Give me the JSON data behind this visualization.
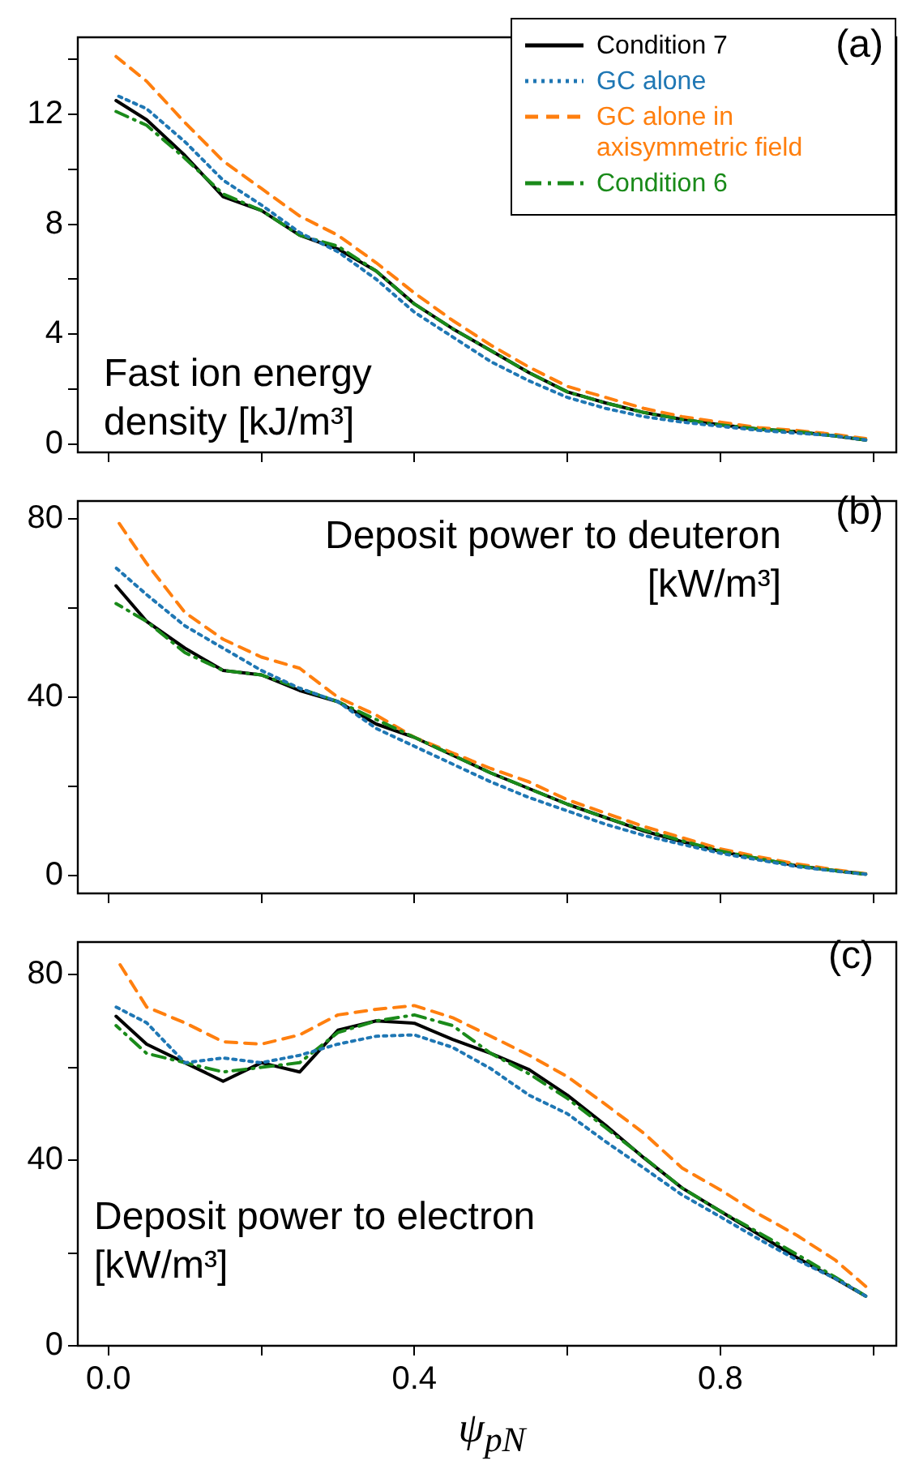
{
  "chart_data": [
    {
      "type": "line",
      "x": [
        0.01,
        0.05,
        0.1,
        0.15,
        0.2,
        0.25,
        0.3,
        0.35,
        0.4,
        0.45,
        0.5,
        0.55,
        0.6,
        0.65,
        0.7,
        0.75,
        0.8,
        0.85,
        0.9,
        0.95,
        0.99
      ],
      "series": [
        {
          "name": "Condition 7",
          "color": "#000000",
          "line_style": "solid",
          "values": [
            12.5,
            11.8,
            10.5,
            9.0,
            8.5,
            7.6,
            7.1,
            6.3,
            5.1,
            4.2,
            3.4,
            2.6,
            1.9,
            1.5,
            1.15,
            0.9,
            0.7,
            0.55,
            0.45,
            0.3,
            0.15
          ]
        },
        {
          "name": "GC alone",
          "color": "#1f77b4",
          "line_style": "dotted",
          "values": [
            12.7,
            12.2,
            11.0,
            9.6,
            8.7,
            7.7,
            7.0,
            6.0,
            4.8,
            3.9,
            3.0,
            2.3,
            1.7,
            1.3,
            1.0,
            0.8,
            0.65,
            0.5,
            0.4,
            0.3,
            0.15
          ]
        },
        {
          "name": "GC alone in axisymmetric field",
          "color": "#ff7f0e",
          "line_style": "dashed",
          "values": [
            14.1,
            13.2,
            11.7,
            10.3,
            9.3,
            8.3,
            7.6,
            6.6,
            5.5,
            4.5,
            3.6,
            2.8,
            2.1,
            1.7,
            1.3,
            1.0,
            0.8,
            0.6,
            0.5,
            0.35,
            0.2
          ]
        },
        {
          "name": "Condition 6",
          "color": "#1a8a1a",
          "line_style": "dashdot",
          "values": [
            12.1,
            11.6,
            10.4,
            9.1,
            8.5,
            7.6,
            7.2,
            6.3,
            5.1,
            4.2,
            3.4,
            2.6,
            1.9,
            1.5,
            1.15,
            0.9,
            0.7,
            0.55,
            0.45,
            0.3,
            0.15
          ]
        }
      ],
      "xlim": [
        -0.04,
        1.03
      ],
      "xticks": [
        {
          "value": 0,
          "label": null
        },
        {
          "value": 0.2,
          "label": null
        },
        {
          "value": 0.4,
          "label": null
        },
        {
          "value": 0.6,
          "label": null
        },
        {
          "value": 0.8,
          "label": null
        },
        {
          "value": 1,
          "label": null
        }
      ],
      "ylim": [
        -0.3,
        14.8
      ],
      "yticks": [
        0,
        {
          "value": 2,
          "label": null
        },
        4,
        {
          "value": 6,
          "label": null
        },
        8,
        {
          "value": 10,
          "label": null
        },
        12,
        {
          "value": 14,
          "label": null
        }
      ],
      "tick_labels": "y",
      "legend": "top right",
      "annotations": [
        "Fast ion energy density [kJ/m³]",
        "(a)"
      ]
    },
    {
      "type": "line",
      "x": [
        0.01,
        0.05,
        0.1,
        0.15,
        0.2,
        0.25,
        0.3,
        0.35,
        0.4,
        0.45,
        0.5,
        0.55,
        0.6,
        0.65,
        0.7,
        0.75,
        0.8,
        0.85,
        0.9,
        0.95,
        0.99
      ],
      "series": [
        {
          "color": "#000000",
          "line_style": "solid",
          "values": [
            65,
            57,
            51,
            46,
            45,
            41.5,
            39,
            34,
            31,
            27,
            23,
            19.5,
            16,
            13,
            10,
            7.6,
            5.4,
            3.8,
            2.2,
            1.1,
            0.3
          ]
        },
        {
          "color": "#1f77b4",
          "line_style": "dotted",
          "values": [
            69,
            63,
            56,
            51,
            46,
            42,
            39,
            33,
            29,
            25,
            21,
            17.5,
            14.5,
            11.5,
            9,
            7,
            5,
            3.5,
            2,
            1,
            0.3
          ]
        },
        {
          "color": "#ff7f0e",
          "line_style": "dashed",
          "values": [
            80,
            70,
            59,
            53,
            49,
            46.5,
            40,
            36,
            31,
            27.5,
            24,
            21,
            17,
            14,
            11,
            8.5,
            6,
            4.2,
            2.6,
            1.3,
            0.4
          ]
        },
        {
          "color": "#1a8a1a",
          "line_style": "dashdot",
          "values": [
            61,
            57,
            50,
            46,
            45,
            42,
            39,
            35,
            31,
            27,
            23,
            19.5,
            16,
            13,
            10.2,
            7.8,
            5.5,
            3.8,
            2.2,
            1.1,
            0.3
          ]
        }
      ],
      "xlim": [
        -0.04,
        1.03
      ],
      "xticks": [
        {
          "value": 0,
          "label": null
        },
        {
          "value": 0.2,
          "label": null
        },
        {
          "value": 0.4,
          "label": null
        },
        {
          "value": 0.6,
          "label": null
        },
        {
          "value": 0.8,
          "label": null
        },
        {
          "value": 1,
          "label": null
        }
      ],
      "ylim": [
        -4,
        84
      ],
      "yticks": [
        0,
        {
          "value": 20,
          "label": null
        },
        40,
        {
          "value": 60,
          "label": null
        },
        80
      ],
      "tick_labels": "y",
      "annotations": [
        "Deposit power to deuteron [kW/m³]",
        "(b)"
      ]
    },
    {
      "type": "line",
      "x": [
        0.01,
        0.05,
        0.1,
        0.15,
        0.2,
        0.25,
        0.3,
        0.35,
        0.4,
        0.45,
        0.5,
        0.55,
        0.6,
        0.65,
        0.7,
        0.75,
        0.8,
        0.85,
        0.9,
        0.95,
        0.99
      ],
      "series": [
        {
          "color": "#000000",
          "line_style": "solid",
          "values": [
            71,
            65,
            61,
            57,
            61,
            59,
            68,
            70,
            69.5,
            66,
            63,
            59.5,
            54,
            47.5,
            40.5,
            34,
            29,
            24,
            19,
            14.5,
            10.7
          ]
        },
        {
          "color": "#1f77b4",
          "line_style": "dotted",
          "values": [
            73,
            69.6,
            61,
            62,
            61,
            62.6,
            65,
            66.7,
            67,
            64.3,
            59.7,
            54,
            50,
            44,
            38.3,
            32.5,
            27.8,
            23,
            18.5,
            14.5,
            10.7
          ]
        },
        {
          "color": "#ff7f0e",
          "line_style": "dashed",
          "values": [
            83.5,
            73,
            69.6,
            65.5,
            65,
            67,
            71.3,
            72.5,
            73.3,
            70.7,
            66.7,
            62.6,
            58,
            52,
            45.8,
            38.3,
            33.6,
            28.4,
            23.8,
            18.5,
            12.8
          ]
        },
        {
          "color": "#1a8a1a",
          "line_style": "dashdot",
          "values": [
            69,
            63,
            61,
            59,
            60,
            61,
            67.5,
            70,
            71.3,
            69,
            63,
            58.6,
            53.3,
            47,
            40.6,
            34,
            29,
            24.4,
            19.7,
            14.8,
            10.7
          ]
        }
      ],
      "xlim": [
        -0.04,
        1.03
      ],
      "xticks": [
        {
          "value": 0,
          "label": "0.0"
        },
        {
          "value": 0.2,
          "label": null
        },
        0.4,
        {
          "value": 0.6,
          "label": null
        },
        0.8,
        {
          "value": 1,
          "label": null
        }
      ],
      "ylim": [
        0,
        87
      ],
      "yticks": [
        0,
        {
          "value": 20,
          "label": null
        },
        40,
        {
          "value": 60,
          "label": null
        },
        80
      ],
      "xlabel": "ψ$_{pN}$",
      "annotations": [
        "Deposit power to electron [kW/m³]",
        "(c)"
      ]
    }
  ]
}
